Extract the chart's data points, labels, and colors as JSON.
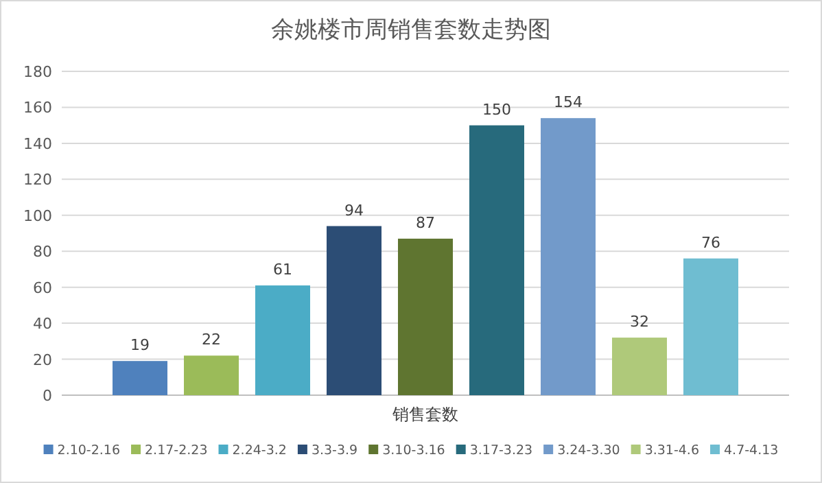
{
  "chart_data": {
    "type": "bar",
    "title": "余姚楼市周销售套数走势图",
    "categories": [
      "销售套数"
    ],
    "series": [
      {
        "name": "2.10-2.16",
        "color": "#4f81bd",
        "values": [
          19
        ]
      },
      {
        "name": "2.17-2.23",
        "color": "#9bbb59",
        "values": [
          22
        ]
      },
      {
        "name": "2.24-3.2",
        "color": "#4bacc6",
        "values": [
          61
        ]
      },
      {
        "name": "3.3-3.9",
        "color": "#2c4d75",
        "values": [
          94
        ]
      },
      {
        "name": "3.10-3.16",
        "color": "#5f7530",
        "values": [
          87
        ]
      },
      {
        "name": "3.17-3.23",
        "color": "#276a7c",
        "values": [
          150
        ]
      },
      {
        "name": "3.24-3.30",
        "color": "#729aca",
        "values": [
          154
        ]
      },
      {
        "name": "3.31-4.6",
        "color": "#afc97a",
        "values": [
          32
        ]
      },
      {
        "name": "4.7-4.13",
        "color": "#6fbdd1",
        "values": [
          76
        ]
      }
    ],
    "ylim": [
      0,
      180
    ],
    "yticks": [
      0,
      20,
      40,
      60,
      80,
      100,
      120,
      140,
      160,
      180
    ],
    "grid": "y",
    "legend": "bottom",
    "data_labels": true
  }
}
